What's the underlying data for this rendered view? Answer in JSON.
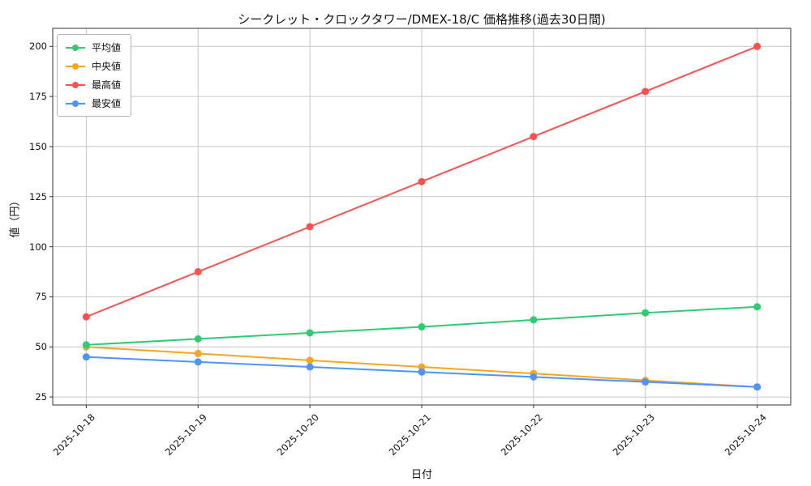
{
  "chart_data": {
    "type": "line",
    "title": "シークレット・クロックタワー/DMEX-18/C 価格推移(過去30日間)",
    "xlabel": "日付",
    "ylabel": "値（円）",
    "categories": [
      "2025-10-18",
      "2025-10-19",
      "2025-10-20",
      "2025-10-21",
      "2025-10-22",
      "2025-10-23",
      "2025-10-24"
    ],
    "series": [
      {
        "key": "avg",
        "name": "平均値",
        "color": "#2ecc71",
        "values": [
          51,
          54,
          57,
          60,
          63.5,
          67,
          70
        ]
      },
      {
        "key": "median",
        "name": "中央値",
        "color": "#f5a623",
        "values": [
          50,
          46.7,
          43.3,
          40,
          36.7,
          33.3,
          30
        ]
      },
      {
        "key": "max",
        "name": "最高値",
        "color": "#ff5050",
        "values": [
          65,
          87.5,
          110,
          132.5,
          155,
          177.5,
          200
        ]
      },
      {
        "key": "min",
        "name": "最安値",
        "color": "#4d94ff",
        "values": [
          45,
          42.5,
          40,
          37.5,
          35,
          32.5,
          30
        ]
      }
    ],
    "ylim": [
      21,
      209
    ],
    "yticks": [
      25,
      50,
      75,
      100,
      125,
      150,
      175,
      200
    ],
    "grid": true,
    "legend_position": "upper left",
    "grid_color": "#c6c6c6",
    "spine_color": "#333333"
  }
}
